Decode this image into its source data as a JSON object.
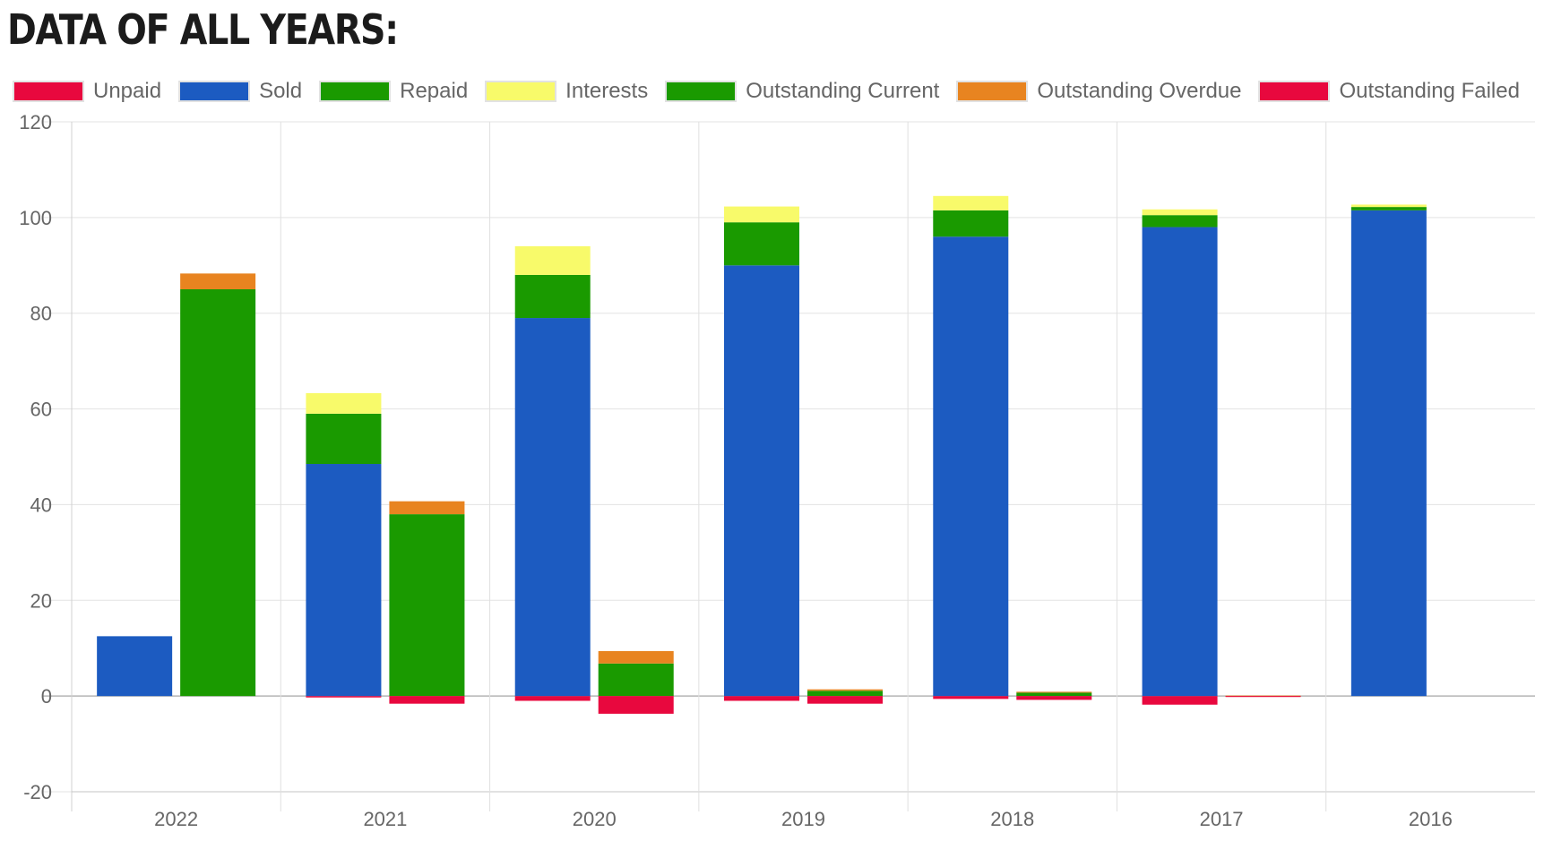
{
  "heading": "DATA OF ALL YEARS:",
  "chart_data": {
    "type": "bar",
    "stacked": true,
    "categories": [
      "2022",
      "2021",
      "2020",
      "2019",
      "2018",
      "2017",
      "2016"
    ],
    "ylim": [
      -20,
      120
    ],
    "yticks": [
      -20,
      0,
      20,
      40,
      60,
      80,
      100,
      120
    ],
    "grid": true,
    "legend_position": "top",
    "series": [
      {
        "name": "Unpaid",
        "stack": "left",
        "color": "#e8083e",
        "values": [
          0,
          -0.3,
          -1,
          -1,
          -0.6,
          -1.8,
          0
        ]
      },
      {
        "name": "Sold",
        "stack": "left",
        "color": "#1c5bc1",
        "values": [
          12.5,
          48.5,
          79,
          90,
          96,
          98,
          101.5
        ]
      },
      {
        "name": "Repaid",
        "stack": "left",
        "color": "#1a9a00",
        "values": [
          0,
          10.5,
          9,
          9,
          5.5,
          2.5,
          0.7
        ]
      },
      {
        "name": "Interests",
        "stack": "left",
        "color": "#f8fa6a",
        "values": [
          0,
          4.3,
          6,
          3.3,
          3,
          1.2,
          0.5
        ]
      },
      {
        "name": "Outstanding Current",
        "stack": "right",
        "color": "#1a9a00",
        "values": [
          85,
          38,
          6.8,
          1.1,
          0.7,
          0,
          0
        ]
      },
      {
        "name": "Outstanding Overdue",
        "stack": "right",
        "color": "#e88420",
        "values": [
          3.3,
          2.7,
          2.6,
          0.3,
          0.2,
          0.1,
          0
        ]
      },
      {
        "name": "Outstanding Failed",
        "stack": "right",
        "color": "#e8083e",
        "values": [
          0,
          -1.6,
          -3.7,
          -1.6,
          -0.8,
          -0.2,
          0
        ]
      }
    ]
  }
}
